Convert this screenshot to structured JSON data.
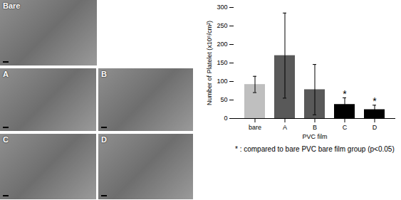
{
  "chart_data": {
    "type": "bar",
    "categories": [
      "bare",
      "A",
      "B",
      "C",
      "D"
    ],
    "values": [
      92,
      170,
      78,
      38,
      24
    ],
    "errors": [
      22,
      115,
      68,
      18,
      12
    ],
    "significance": [
      null,
      null,
      null,
      "*",
      "*"
    ],
    "colors": [
      "#bfbfbf",
      "#595959",
      "#595959",
      "#000000",
      "#000000"
    ],
    "ylabel": "Number of Platelet (x10⁵/cm²)",
    "xlabel": "PVC film",
    "ylim": [
      0,
      300
    ],
    "yticks": [
      0,
      50,
      100,
      150,
      200,
      250,
      300
    ],
    "annotations": [
      "* : compared to bare PVC bare film group (p<0.05)"
    ]
  },
  "panels": [
    "Bare",
    "A",
    "B",
    "C",
    "D"
  ]
}
